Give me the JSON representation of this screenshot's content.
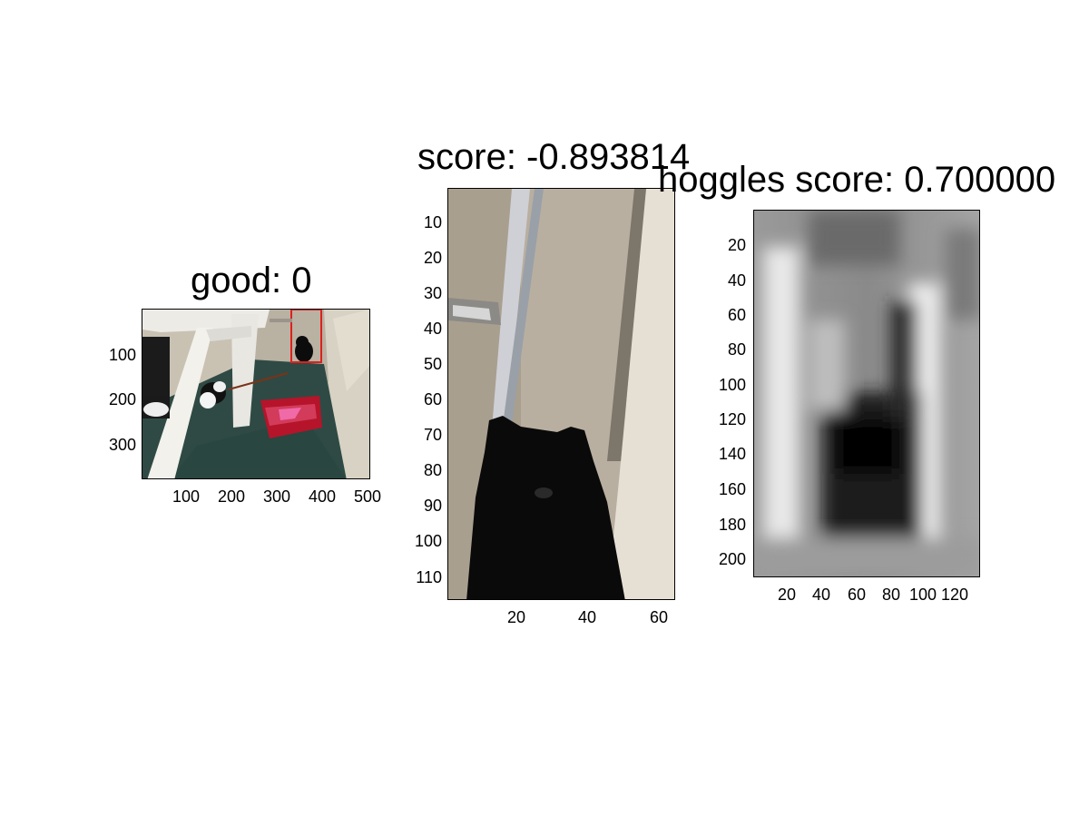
{
  "figure": {
    "panels": [
      {
        "id": "left",
        "title": "good: 0",
        "content": "photo of white chair, black-and-white cat, black cat behind chair, red litter box with pink scoop, green floor, textured wall",
        "yticks": [
          "100",
          "200",
          "300"
        ],
        "xticks": [
          "100",
          "200",
          "300",
          "400",
          "500"
        ],
        "detection_box_color": "#e0201a"
      },
      {
        "id": "middle",
        "title": "score: -0.893814",
        "content": "cropped detection window showing black cat against wall",
        "yticks": [
          "10",
          "20",
          "30",
          "40",
          "50",
          "60",
          "70",
          "80",
          "90",
          "100",
          "110"
        ],
        "xticks": [
          "20",
          "40",
          "60"
        ]
      },
      {
        "id": "right",
        "title": "hoggles score: 0.700000",
        "content": "grayscale HOG inversion of detection window",
        "yticks": [
          "20",
          "40",
          "60",
          "80",
          "100",
          "120",
          "140",
          "160",
          "180",
          "200"
        ],
        "xticks": [
          "20",
          "40",
          "60",
          "80",
          "100",
          "120"
        ]
      }
    ]
  }
}
